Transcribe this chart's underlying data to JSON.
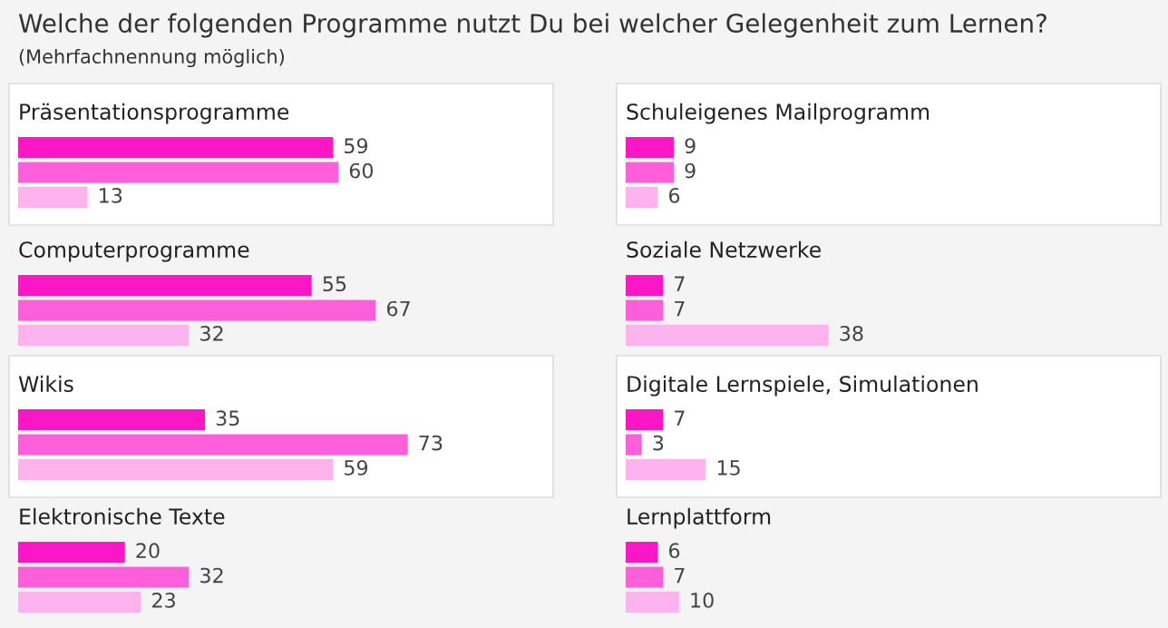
{
  "chart_data": [
    {
      "type": "bar",
      "orientation": "horizontal",
      "title": "Präsentationsprogramme",
      "annotations": [
        "Welche der folgenden Programme nutzt Du bei welcher Gelegenheit zum Lernen?",
        "(Mehrfachnennung möglich)"
      ],
      "categories": [
        null
      ],
      "data_labels": true,
      "series": [
        {
          "color": "#fb17c6",
          "values": [
            59
          ]
        },
        {
          "color": "#fc5fd9",
          "values": [
            60
          ]
        },
        {
          "color": "#fcb3ee",
          "values": [
            13
          ]
        }
      ]
    },
    {
      "type": "bar",
      "orientation": "horizontal",
      "title": "Schuleigenes Mailprogramm",
      "categories": [
        null
      ],
      "data_labels": true,
      "series": [
        {
          "color": "#fb17c6",
          "values": [
            9
          ]
        },
        {
          "color": "#fc5fd9",
          "values": [
            9
          ]
        },
        {
          "color": "#fcb3ee",
          "values": [
            6
          ]
        }
      ]
    },
    {
      "type": "bar",
      "orientation": "horizontal",
      "title": "Computerprogramme",
      "categories": [
        null
      ],
      "data_labels": true,
      "series": [
        {
          "color": "#fb17c6",
          "values": [
            55
          ]
        },
        {
          "color": "#fc5fd9",
          "values": [
            67
          ]
        },
        {
          "color": "#fcb3ee",
          "values": [
            32
          ]
        }
      ]
    },
    {
      "type": "bar",
      "orientation": "horizontal",
      "title": "Soziale Netzwerke",
      "categories": [
        null
      ],
      "data_labels": true,
      "series": [
        {
          "color": "#fb17c6",
          "values": [
            7
          ]
        },
        {
          "color": "#fc5fd9",
          "values": [
            7
          ]
        },
        {
          "color": "#fcb3ee",
          "values": [
            38
          ]
        }
      ]
    },
    {
      "type": "bar",
      "orientation": "horizontal",
      "title": "Wikis",
      "categories": [
        null
      ],
      "data_labels": true,
      "series": [
        {
          "color": "#fb17c6",
          "values": [
            35
          ]
        },
        {
          "color": "#fc5fd9",
          "values": [
            73
          ]
        },
        {
          "color": "#fcb3ee",
          "values": [
            59
          ]
        }
      ]
    },
    {
      "type": "bar",
      "orientation": "horizontal",
      "title": "Digitale Lernspiele, Simulationen",
      "categories": [
        null
      ],
      "data_labels": true,
      "series": [
        {
          "color": "#fb17c6",
          "values": [
            7
          ]
        },
        {
          "color": "#fc5fd9",
          "values": [
            3
          ]
        },
        {
          "color": "#fcb3ee",
          "values": [
            15
          ]
        }
      ]
    },
    {
      "type": "bar",
      "orientation": "horizontal",
      "title": "Elektronische Texte",
      "categories": [
        null
      ],
      "data_labels": true,
      "series": [
        {
          "color": "#fb17c6",
          "values": [
            20
          ]
        },
        {
          "color": "#fc5fd9",
          "values": [
            32
          ]
        },
        {
          "color": "#fcb3ee",
          "values": [
            23
          ]
        }
      ]
    },
    {
      "type": "bar",
      "orientation": "horizontal",
      "title": "Lernplattform",
      "categories": [
        null
      ],
      "data_labels": true,
      "series": [
        {
          "color": "#fb17c6",
          "values": [
            6
          ]
        },
        {
          "color": "#fc5fd9",
          "values": [
            7
          ]
        },
        {
          "color": "#fcb3ee",
          "values": [
            10
          ]
        }
      ]
    }
  ]
}
